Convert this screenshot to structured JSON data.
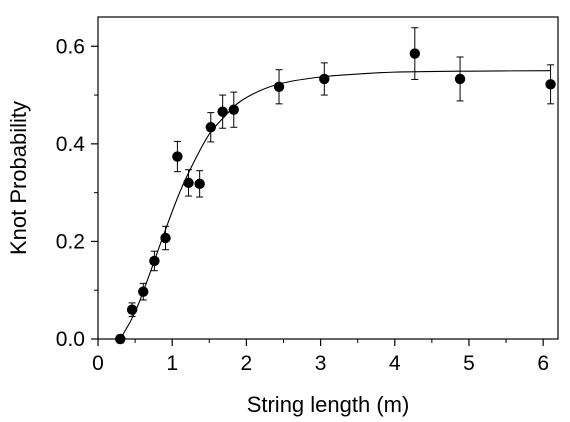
{
  "chart_data": {
    "type": "scatter",
    "xlabel": "String length (m)",
    "ylabel": "Knot Probability",
    "xlim": [
      0,
      6.2
    ],
    "ylim": [
      0,
      0.66
    ],
    "xticks": [
      "0",
      "1",
      "2",
      "3",
      "4",
      "5",
      "6"
    ],
    "yticks": [
      "0.0",
      "0.2",
      "0.4",
      "0.6"
    ],
    "grid": false,
    "series": [
      {
        "type": "scatter",
        "marker": "filled-circle",
        "color": "#000000",
        "points": [
          {
            "x": 0.3,
            "y": 0.0,
            "err": 0.008
          },
          {
            "x": 0.46,
            "y": 0.06,
            "err": 0.014
          },
          {
            "x": 0.61,
            "y": 0.097,
            "err": 0.017
          },
          {
            "x": 0.76,
            "y": 0.16,
            "err": 0.02
          },
          {
            "x": 0.91,
            "y": 0.207,
            "err": 0.024
          },
          {
            "x": 1.07,
            "y": 0.374,
            "err": 0.031
          },
          {
            "x": 1.22,
            "y": 0.32,
            "err": 0.027
          },
          {
            "x": 1.37,
            "y": 0.318,
            "err": 0.027
          },
          {
            "x": 1.52,
            "y": 0.434,
            "err": 0.03
          },
          {
            "x": 1.68,
            "y": 0.466,
            "err": 0.034
          },
          {
            "x": 1.83,
            "y": 0.47,
            "err": 0.036
          },
          {
            "x": 2.44,
            "y": 0.517,
            "err": 0.035
          },
          {
            "x": 3.05,
            "y": 0.533,
            "err": 0.033
          },
          {
            "x": 4.27,
            "y": 0.585,
            "err": 0.053
          },
          {
            "x": 4.88,
            "y": 0.533,
            "err": 0.045
          },
          {
            "x": 6.1,
            "y": 0.522,
            "err": 0.04
          }
        ]
      },
      {
        "type": "line",
        "color": "#000000",
        "points": [
          {
            "x": 0.3,
            "y": 0.0
          },
          {
            "x": 0.5,
            "y": 0.055
          },
          {
            "x": 0.7,
            "y": 0.135
          },
          {
            "x": 0.9,
            "y": 0.22
          },
          {
            "x": 1.1,
            "y": 0.3
          },
          {
            "x": 1.3,
            "y": 0.365
          },
          {
            "x": 1.5,
            "y": 0.42
          },
          {
            "x": 1.7,
            "y": 0.455
          },
          {
            "x": 1.9,
            "y": 0.485
          },
          {
            "x": 2.2,
            "y": 0.51
          },
          {
            "x": 2.5,
            "y": 0.525
          },
          {
            "x": 3.0,
            "y": 0.537
          },
          {
            "x": 3.5,
            "y": 0.543
          },
          {
            "x": 4.0,
            "y": 0.547
          },
          {
            "x": 5.0,
            "y": 0.549
          },
          {
            "x": 6.1,
            "y": 0.55
          }
        ]
      }
    ]
  }
}
